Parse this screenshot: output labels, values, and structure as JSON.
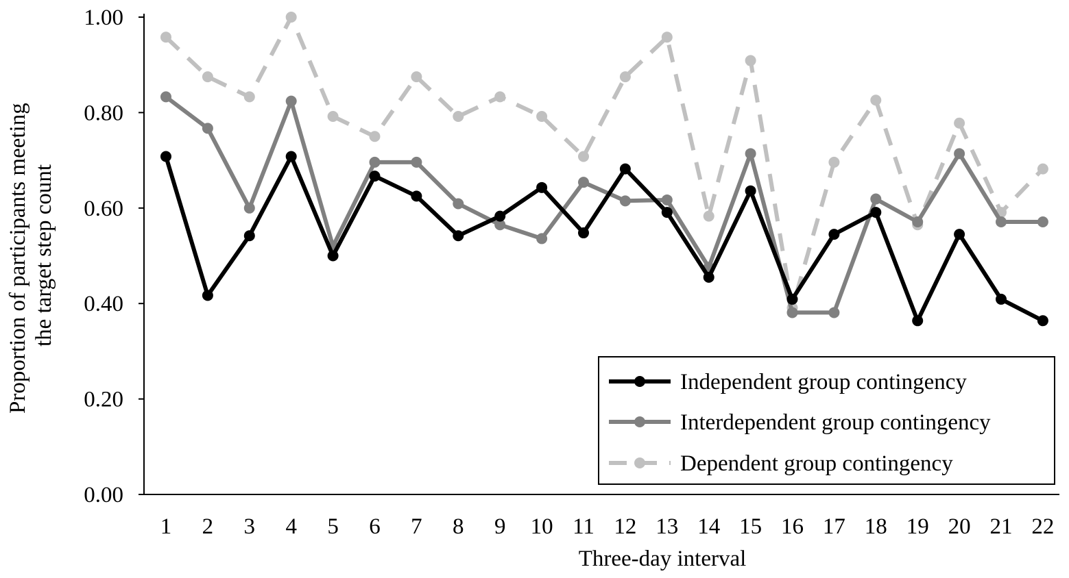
{
  "chart_data": {
    "type": "line",
    "title": "",
    "xlabel": "Three-day interval",
    "ylabel_lines": [
      "Proportion of participants meeting",
      "the target step count"
    ],
    "x": [
      1,
      2,
      3,
      4,
      5,
      6,
      7,
      8,
      9,
      10,
      11,
      12,
      13,
      14,
      15,
      16,
      17,
      18,
      19,
      20,
      21,
      22
    ],
    "x_tick_labels": [
      "1",
      "2",
      "3",
      "4",
      "5",
      "6",
      "7",
      "8",
      "9",
      "10",
      "11",
      "12",
      "13",
      "14",
      "15",
      "16",
      "17",
      "18",
      "19",
      "20",
      "21",
      "22"
    ],
    "ylim": [
      0,
      1
    ],
    "y_ticks": [
      0,
      0.2,
      0.4,
      0.6,
      0.8,
      1.0
    ],
    "y_tick_labels": [
      "0.00",
      "0.20",
      "0.40",
      "0.60",
      "0.80",
      "1.00"
    ],
    "grid": false,
    "legend_position": "bottom-right",
    "series": [
      {
        "name": "Independent group contingency",
        "color": "#000000",
        "dash": "solid",
        "values": [
          0.708,
          0.417,
          0.542,
          0.708,
          0.5,
          0.667,
          0.625,
          0.542,
          0.583,
          0.643,
          0.548,
          0.682,
          0.591,
          0.455,
          0.636,
          0.409,
          0.545,
          0.591,
          0.364,
          0.545,
          0.409,
          0.364
        ]
      },
      {
        "name": "Interdependent group contingency",
        "color": "#808080",
        "dash": "solid",
        "values": [
          0.833,
          0.767,
          0.6,
          0.824,
          0.52,
          0.696,
          0.696,
          0.609,
          0.565,
          0.536,
          0.654,
          0.615,
          0.617,
          0.476,
          0.714,
          0.381,
          0.381,
          0.619,
          0.571,
          0.714,
          0.571,
          0.571
        ]
      },
      {
        "name": "Dependent group contingency",
        "color": "#c0c0c0",
        "dash": "dashed",
        "values": [
          0.958,
          0.875,
          0.833,
          1.0,
          0.792,
          0.75,
          0.875,
          0.792,
          0.833,
          0.792,
          0.708,
          0.875,
          0.958,
          0.583,
          0.909,
          0.391,
          0.696,
          0.826,
          0.565,
          0.778,
          0.591,
          0.682
        ]
      }
    ]
  }
}
